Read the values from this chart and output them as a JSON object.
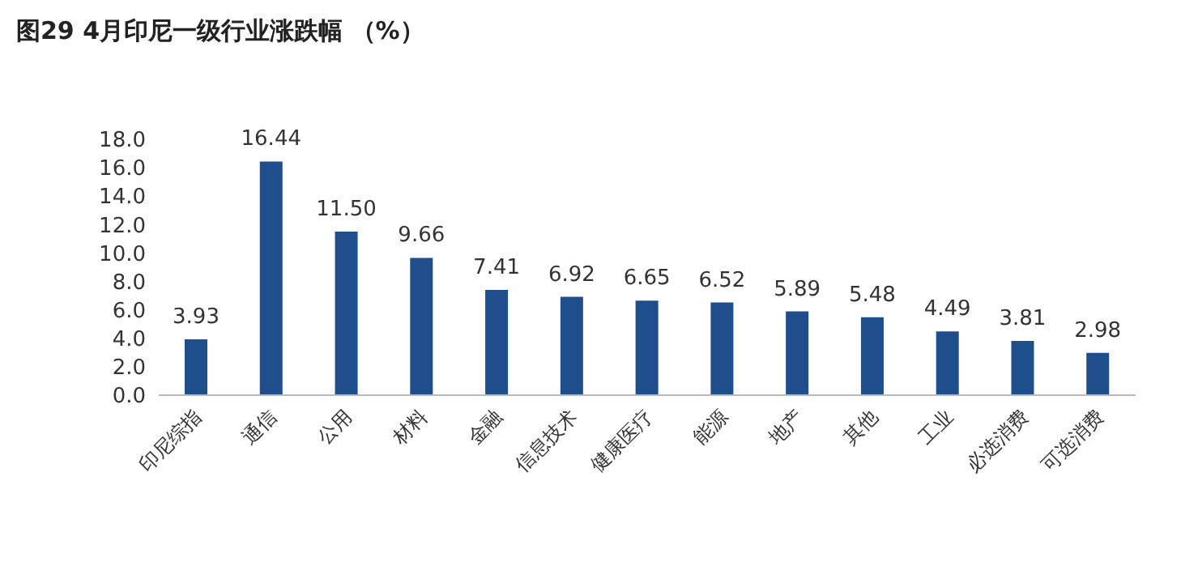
{
  "chart_data": {
    "type": "bar",
    "title": "图29 4月印尼一级行业涨跌幅 （%）",
    "categories": [
      "印尼综指",
      "通信",
      "公用",
      "材料",
      "金融",
      "信息技术",
      "健康医疗",
      "能源",
      "地产",
      "其他",
      "工业",
      "必选消费",
      "可选消费"
    ],
    "values": [
      3.93,
      16.44,
      11.5,
      9.66,
      7.41,
      6.92,
      6.65,
      6.52,
      5.89,
      5.48,
      4.49,
      3.81,
      2.98
    ],
    "value_labels": [
      "3.93",
      "16.44",
      "11.50",
      "9.66",
      "7.41",
      "6.92",
      "6.65",
      "6.52",
      "5.89",
      "5.48",
      "4.49",
      "3.81",
      "2.98"
    ],
    "color": "#1f4e8c",
    "ylim": [
      0,
      18
    ],
    "yticks": [
      {
        "value": 0,
        "label": "0.0"
      },
      {
        "value": 2,
        "label": "2.0"
      },
      {
        "value": 4,
        "label": "4.0"
      },
      {
        "value": 6,
        "label": "6.0"
      },
      {
        "value": 8,
        "label": "8.0"
      },
      {
        "value": 10,
        "label": "10.0"
      },
      {
        "value": 12,
        "label": "12.0"
      },
      {
        "value": 14,
        "label": "14.0"
      },
      {
        "value": 16,
        "label": "16.0"
      },
      {
        "value": 18,
        "label": "18.0"
      }
    ],
    "grid": false,
    "legend": false
  }
}
